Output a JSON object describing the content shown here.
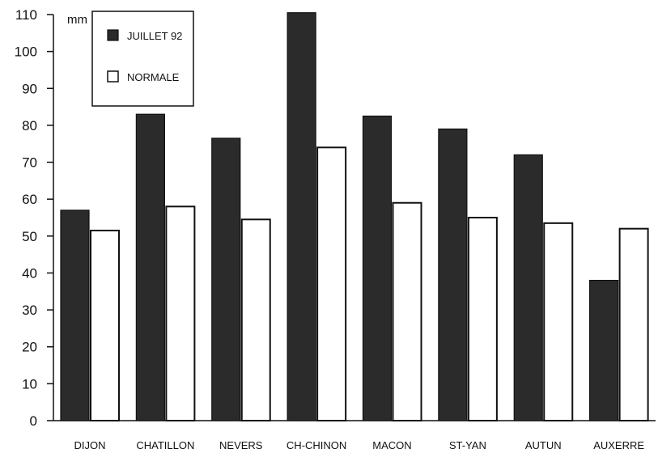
{
  "chart_data": {
    "type": "bar",
    "categories": [
      "DIJON",
      "CHATILLON",
      "NEVERS",
      "CH-CHINON",
      "MACON",
      "ST-YAN",
      "AUTUN",
      "AUXERRE"
    ],
    "series": [
      {
        "name": "JUILLET 92",
        "values": [
          57,
          83,
          76.5,
          110.5,
          82.5,
          79,
          72,
          38
        ]
      },
      {
        "name": "NORMALE",
        "values": [
          51.5,
          58,
          54.5,
          74,
          59,
          55,
          53.5,
          52
        ]
      }
    ],
    "ylabel": "mm",
    "ylim": [
      0,
      110
    ],
    "yticks": [
      0,
      10,
      20,
      30,
      40,
      50,
      60,
      70,
      80,
      90,
      100,
      110
    ],
    "grid": false,
    "legend_position": "top-left",
    "colors": {
      "JUILLET 92": "#2b2b2b",
      "NORMALE": "#ffffff",
      "outline": "#111111"
    }
  }
}
